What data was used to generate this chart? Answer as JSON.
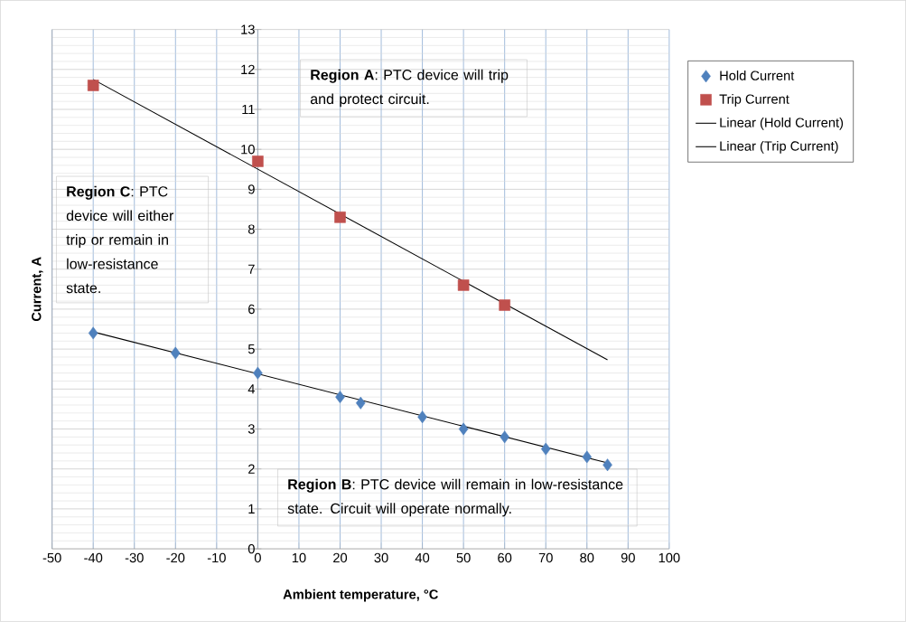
{
  "chart_data": {
    "type": "scatter",
    "xlabel": "Ambient temperature, °C",
    "ylabel": "Current, A",
    "xlim": [
      -50,
      100
    ],
    "ylim": [
      0,
      13
    ],
    "xticks": [
      -50,
      -40,
      -30,
      -20,
      -10,
      0,
      10,
      20,
      30,
      40,
      50,
      60,
      70,
      80,
      90,
      100
    ],
    "yticks": [
      0,
      1,
      2,
      3,
      4,
      5,
      6,
      7,
      8,
      9,
      10,
      11,
      12,
      13
    ],
    "grid": true,
    "legend": "right",
    "series": [
      {
        "name": "Hold Current",
        "marker": "diamond",
        "color": "#4f81bd",
        "x": [
          -40,
          -20,
          0,
          20,
          25,
          40,
          50,
          60,
          70,
          80,
          85
        ],
        "values": [
          5.4,
          4.9,
          4.4,
          3.8,
          3.65,
          3.3,
          3.0,
          2.8,
          2.5,
          2.3,
          2.1
        ]
      },
      {
        "name": "Trip Current",
        "marker": "square",
        "color": "#c0504d",
        "x": [
          -40,
          0,
          20,
          50,
          60
        ],
        "values": [
          11.6,
          9.7,
          8.3,
          6.6,
          6.1
        ]
      },
      {
        "name": "Linear (Hold Current)",
        "type": "line",
        "marker": "none",
        "color": "#000000",
        "x": [
          -40,
          85
        ],
        "values": [
          5.43,
          2.15
        ]
      },
      {
        "name": "Linear (Trip Current)",
        "type": "line",
        "marker": "none",
        "color": "#000000",
        "x": [
          -40,
          85
        ],
        "values": [
          11.75,
          4.73
        ]
      }
    ],
    "annotations": [
      "**Region A**: PTC device will trip and protect circuit.",
      "**Region B**: PTC device will remain in low-resistance state.  Circuit will operate normally.",
      "**Region C**: PTC device will either trip or remain in low-resistance state."
    ]
  }
}
